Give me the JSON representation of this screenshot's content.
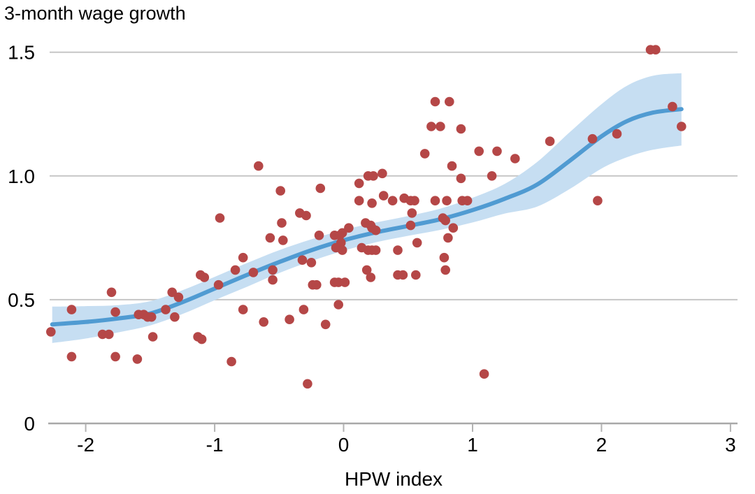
{
  "title": "3-month wage growth",
  "chart_data": {
    "type": "scatter",
    "title": "3-month wage growth",
    "xlabel": "HPW index",
    "ylabel": "",
    "xlim": [
      -2.28,
      3.055
    ],
    "ylim": [
      0,
      1.55
    ],
    "x_ticks": [
      -2,
      -1,
      0,
      1,
      2,
      3
    ],
    "x_tick_labels": [
      "-2",
      "-1",
      "0",
      "1",
      "2",
      "3"
    ],
    "y_ticks": [
      0,
      0.5,
      1.0,
      1.5
    ],
    "y_tick_labels": [
      "0",
      "0.5",
      "1.0",
      "1.5"
    ],
    "grid": "horizontal gridlines at 0.5, 1.0, 1.5",
    "legend": "none",
    "colors": {
      "point": "#b54747",
      "trend_line": "#509bd2",
      "confidence_band": "#c6def2",
      "gridline": "#c6c6c6",
      "axis": "#a8a8a8",
      "tick": "#b3b3b3",
      "text": "#000000"
    },
    "series": [
      {
        "name": "observations",
        "type": "scatter",
        "points": [
          [
            -2.27,
            0.37
          ],
          [
            -2.11,
            0.46
          ],
          [
            -2.11,
            0.27
          ],
          [
            -1.87,
            0.36
          ],
          [
            -1.82,
            0.36
          ],
          [
            -1.8,
            0.53
          ],
          [
            -1.77,
            0.27
          ],
          [
            -1.77,
            0.45
          ],
          [
            -1.6,
            0.26
          ],
          [
            -1.59,
            0.44
          ],
          [
            -1.55,
            0.44
          ],
          [
            -1.52,
            0.43
          ],
          [
            -1.49,
            0.43
          ],
          [
            -1.48,
            0.35
          ],
          [
            -1.38,
            0.46
          ],
          [
            -1.33,
            0.53
          ],
          [
            -1.28,
            0.51
          ],
          [
            -1.31,
            0.43
          ],
          [
            -1.13,
            0.35
          ],
          [
            -1.1,
            0.34
          ],
          [
            -1.11,
            0.6
          ],
          [
            -1.08,
            0.59
          ],
          [
            -0.97,
            0.56
          ],
          [
            -0.96,
            0.83
          ],
          [
            -0.87,
            0.25
          ],
          [
            -0.84,
            0.62
          ],
          [
            -0.78,
            0.67
          ],
          [
            -0.78,
            0.46
          ],
          [
            -0.7,
            0.61
          ],
          [
            -0.66,
            1.04
          ],
          [
            -0.62,
            0.41
          ],
          [
            -0.57,
            0.75
          ],
          [
            -0.55,
            0.62
          ],
          [
            -0.55,
            0.58
          ],
          [
            -0.49,
            0.94
          ],
          [
            -0.48,
            0.81
          ],
          [
            -0.47,
            0.74
          ],
          [
            -0.42,
            0.42
          ],
          [
            -0.34,
            0.85
          ],
          [
            -0.29,
            0.84
          ],
          [
            -0.32,
            0.66
          ],
          [
            -0.25,
            0.65
          ],
          [
            -0.31,
            0.46
          ],
          [
            -0.28,
            0.16
          ],
          [
            -0.24,
            0.56
          ],
          [
            -0.21,
            0.56
          ],
          [
            -0.19,
            0.76
          ],
          [
            -0.18,
            0.95
          ],
          [
            -0.14,
            0.4
          ],
          [
            -0.07,
            0.76
          ],
          [
            -0.03,
            0.76
          ],
          [
            -0.01,
            0.77
          ],
          [
            -0.02,
            0.73
          ],
          [
            -0.06,
            0.71
          ],
          [
            -0.01,
            0.7
          ],
          [
            -0.07,
            0.57
          ],
          [
            -0.04,
            0.57
          ],
          [
            0.01,
            0.57
          ],
          [
            -0.04,
            0.48
          ],
          [
            0.04,
            0.79
          ],
          [
            0.12,
            0.97
          ],
          [
            0.12,
            0.9
          ],
          [
            0.22,
            0.89
          ],
          [
            0.19,
            1.0
          ],
          [
            0.23,
            1.0
          ],
          [
            0.3,
            1.01
          ],
          [
            0.31,
            0.92
          ],
          [
            0.38,
            0.9
          ],
          [
            0.17,
            0.81
          ],
          [
            0.21,
            0.8
          ],
          [
            0.22,
            0.79
          ],
          [
            0.25,
            0.78
          ],
          [
            0.14,
            0.71
          ],
          [
            0.19,
            0.7
          ],
          [
            0.22,
            0.7
          ],
          [
            0.25,
            0.7
          ],
          [
            0.18,
            0.62
          ],
          [
            0.21,
            0.59
          ],
          [
            0.42,
            0.7
          ],
          [
            0.47,
            0.91
          ],
          [
            0.52,
            0.9
          ],
          [
            0.55,
            0.9
          ],
          [
            0.53,
            0.85
          ],
          [
            0.52,
            0.8
          ],
          [
            0.57,
            0.73
          ],
          [
            0.42,
            0.6
          ],
          [
            0.46,
            0.6
          ],
          [
            0.56,
            0.6
          ],
          [
            0.63,
            1.09
          ],
          [
            0.68,
            1.2
          ],
          [
            0.75,
            1.2
          ],
          [
            0.71,
            1.3
          ],
          [
            0.82,
            1.3
          ],
          [
            0.71,
            0.9
          ],
          [
            0.8,
            0.9
          ],
          [
            0.77,
            0.83
          ],
          [
            0.79,
            0.82
          ],
          [
            0.85,
            0.79
          ],
          [
            0.81,
            0.75
          ],
          [
            0.78,
            0.67
          ],
          [
            0.79,
            0.62
          ],
          [
            0.84,
            1.04
          ],
          [
            0.91,
            1.19
          ],
          [
            0.92,
            0.9
          ],
          [
            0.96,
            0.9
          ],
          [
            1.05,
            1.1
          ],
          [
            1.19,
            1.1
          ],
          [
            0.91,
            0.99
          ],
          [
            1.15,
            1.0
          ],
          [
            1.09,
            0.2
          ],
          [
            1.33,
            1.07
          ],
          [
            1.6,
            1.14
          ],
          [
            1.93,
            1.15
          ],
          [
            1.97,
            0.9
          ],
          [
            2.12,
            1.17
          ],
          [
            2.38,
            1.51
          ],
          [
            2.42,
            1.51
          ],
          [
            2.55,
            1.28
          ],
          [
            2.62,
            1.2
          ]
        ]
      },
      {
        "name": "smoothed-trend",
        "type": "line",
        "x": [
          -2.26,
          -2.0,
          -1.75,
          -1.5,
          -1.25,
          -1.0,
          -0.75,
          -0.5,
          -0.25,
          0,
          0.25,
          0.5,
          0.75,
          1.0,
          1.25,
          1.5,
          1.75,
          2.0,
          2.2,
          2.4,
          2.62
        ],
        "y": [
          0.4,
          0.41,
          0.424,
          0.444,
          0.49,
          0.545,
          0.6,
          0.652,
          0.7,
          0.74,
          0.772,
          0.798,
          0.825,
          0.862,
          0.908,
          0.965,
          1.06,
          1.16,
          1.222,
          1.256,
          1.27
        ]
      },
      {
        "name": "confidence-band",
        "type": "area",
        "x": [
          -2.26,
          -2.0,
          -1.75,
          -1.5,
          -1.25,
          -1.0,
          -0.75,
          -0.5,
          -0.25,
          0,
          0.25,
          0.5,
          0.75,
          1.0,
          1.25,
          1.5,
          1.75,
          2.0,
          2.2,
          2.4,
          2.62
        ],
        "upper": [
          0.472,
          0.474,
          0.478,
          0.494,
          0.538,
          0.592,
          0.648,
          0.7,
          0.744,
          0.782,
          0.812,
          0.838,
          0.868,
          0.912,
          0.968,
          1.056,
          1.175,
          1.29,
          1.365,
          1.405,
          1.415
        ],
        "lower": [
          0.325,
          0.343,
          0.368,
          0.396,
          0.442,
          0.498,
          0.552,
          0.608,
          0.656,
          0.698,
          0.732,
          0.758,
          0.782,
          0.812,
          0.848,
          0.876,
          0.946,
          1.03,
          1.076,
          1.106,
          1.123
        ]
      }
    ]
  }
}
